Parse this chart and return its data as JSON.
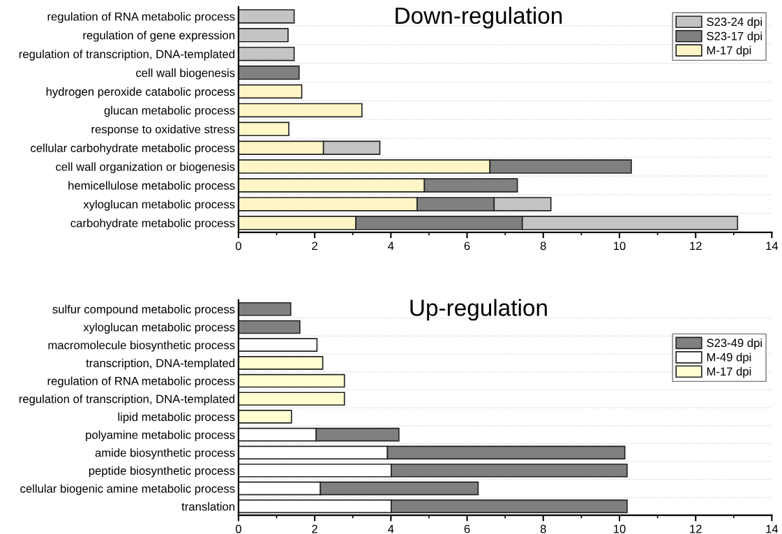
{
  "chart_data": [
    {
      "type": "bar",
      "orientation": "horizontal",
      "stacked": true,
      "title": "Down-regulation",
      "categories": [
        "regulation of RNA metabolic process",
        "regulation of gene expression",
        "regulation of transcription, DNA-templated",
        "cell wall biogenesis",
        "hydrogen peroxide catabolic process",
        "glucan metabolic process",
        "response to oxidative stress",
        "cellular carbohydrate metabolic process",
        "cell wall organization or biogenesis",
        "hemicellulose metabolic process",
        "xyloglucan metabolic process",
        "carbohydrate metabolic process"
      ],
      "series": [
        {
          "name": "M-17 dpi",
          "color": "#fff5c6",
          "values": [
            null,
            null,
            null,
            null,
            1.66,
            3.24,
            1.32,
            2.23,
            6.6,
            4.88,
            4.69,
            3.08
          ]
        },
        {
          "name": "S23-17 dpi",
          "color": "#808080",
          "values": [
            null,
            null,
            null,
            1.59,
            null,
            null,
            null,
            null,
            3.71,
            2.44,
            2.02,
            4.37
          ]
        },
        {
          "name": "S23-24 dpi",
          "color": "#c4c4c4",
          "values": [
            1.46,
            1.3,
            1.46,
            null,
            null,
            null,
            null,
            1.48,
            null,
            null,
            1.49,
            5.65
          ]
        }
      ],
      "xlim": [
        0,
        14
      ],
      "xticks": [
        0,
        2,
        4,
        6,
        8,
        10,
        12,
        14
      ],
      "grid": "y",
      "legend": "top right"
    },
    {
      "type": "bar",
      "orientation": "horizontal",
      "stacked": true,
      "title": "Up-regulation",
      "categories": [
        "sulfur compound metabolic process",
        "xyloglucan metabolic process",
        "macromolecule biosynthetic process",
        "transcription, DNA-templated",
        "regulation of RNA metabolic process",
        "regulation of transcription, DNA-templated",
        "lipid metabolic process",
        "polyamine metabolic process",
        "amide biosynthetic process",
        "peptide biosynthetic process",
        "cellular biogenic amine metabolic process",
        "translation"
      ],
      "series": [
        {
          "name": "M-17 dpi",
          "color": "#ffffd2",
          "values": [
            null,
            null,
            null,
            2.21,
            2.78,
            2.78,
            1.39,
            null,
            null,
            null,
            null,
            null
          ]
        },
        {
          "name": "M-49 dpi",
          "color": "#ffffff",
          "values": [
            null,
            null,
            2.06,
            null,
            null,
            null,
            null,
            2.04,
            3.91,
            4.01,
            2.15,
            4.01
          ]
        },
        {
          "name": "S23-49 dpi",
          "color": "#808080",
          "values": [
            1.37,
            1.61,
            null,
            null,
            null,
            null,
            null,
            2.17,
            6.23,
            6.19,
            4.14,
            6.19
          ]
        }
      ],
      "xlim": [
        0,
        14
      ],
      "xticks": [
        0,
        2,
        4,
        6,
        8,
        10,
        12,
        14
      ],
      "grid": "y",
      "legend": "top right"
    }
  ]
}
